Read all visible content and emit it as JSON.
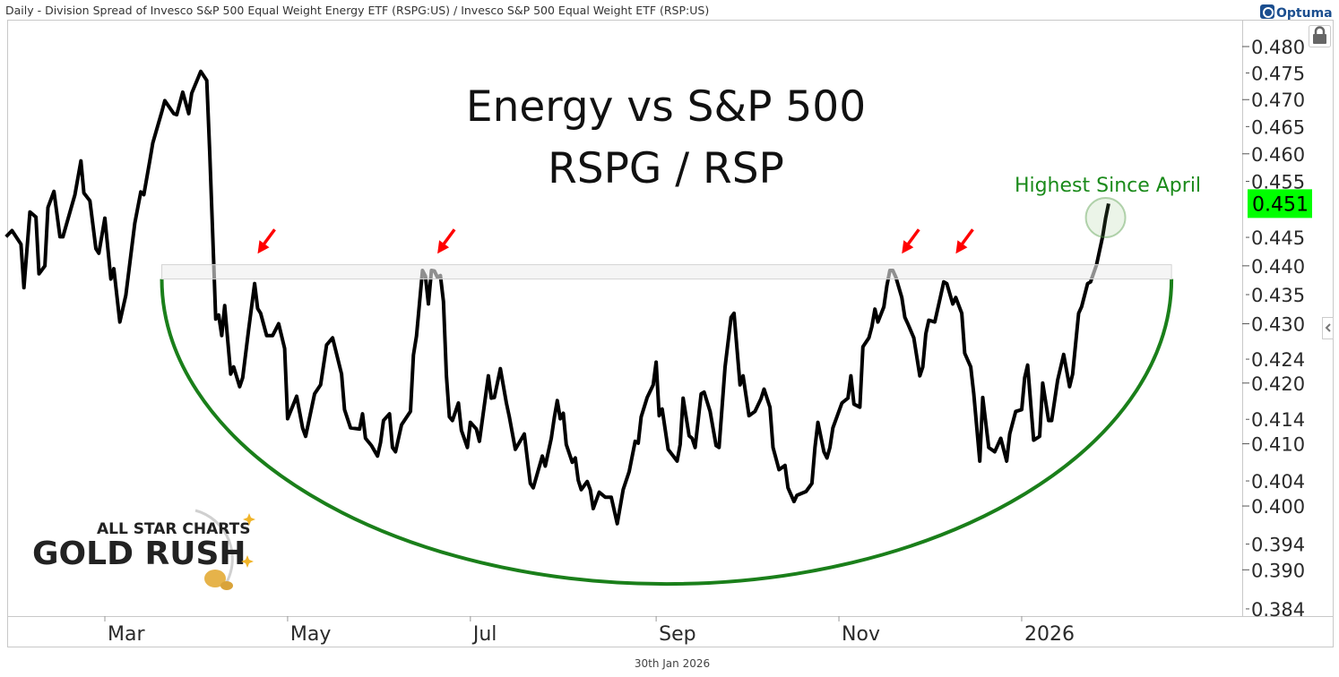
{
  "header": {
    "description": "Daily - Division Spread of Invesco S&P 500 Equal Weight Energy ETF (RSPG:US) / Invesco S&P 500 Equal Weight ETF (RSP:US)",
    "brand": "Optuma"
  },
  "footer": {
    "date": "30th Jan 2026"
  },
  "logo": {
    "line1": "ALL STAR CHARTS",
    "line2": "GOLD RUSH"
  },
  "colors": {
    "line": "#000000",
    "cup": "#1a7f1a",
    "arrow": "#ff0000",
    "last_value_bg": "#00ff00",
    "annotation": "#1a8a1a"
  },
  "chart_data": {
    "type": "line",
    "title": "Energy vs S&P 500",
    "subtitle": "RSPG / RSP",
    "x_unit": "days since 2025-01-01",
    "y_scale": "log",
    "ylim": [
      0.382,
      0.484
    ],
    "xlim": [
      24,
      420
    ],
    "x_ticks": [
      {
        "label": "Mar",
        "day": 59
      },
      {
        "label": "May",
        "day": 120
      },
      {
        "label": "Jul",
        "day": 181
      },
      {
        "label": "Sep",
        "day": 243
      },
      {
        "label": "Nov",
        "day": 304
      },
      {
        "label": "2026",
        "day": 365
      }
    ],
    "y_ticks": [
      "0.480",
      "0.475",
      "0.470",
      "0.465",
      "0.460",
      "0.455",
      "0.445",
      "0.440",
      "0.435",
      "0.430",
      "0.424",
      "0.420",
      "0.414",
      "0.410",
      "0.404",
      "0.400",
      "0.394",
      "0.390",
      "0.384"
    ],
    "last_value": "0.451",
    "annotation": {
      "text": "Highest Since April",
      "day": 393,
      "value": 0.4485
    },
    "resistance_band": {
      "from_day": 78,
      "to_day": 415,
      "low": 0.4377,
      "high": 0.4402
    },
    "cup": {
      "from_day": 78,
      "to_day": 415,
      "rim": 0.4377,
      "bottom": 0.3878
    },
    "arrows": [
      {
        "day": 110,
        "value": 0.4415
      },
      {
        "day": 170,
        "value": 0.4415
      },
      {
        "day": 325,
        "value": 0.4415
      },
      {
        "day": 343,
        "value": 0.4415
      }
    ],
    "series": [
      {
        "name": "RSPG / RSP",
        "points": [
          [
            26,
            0.4451
          ],
          [
            28,
            0.4462
          ],
          [
            31,
            0.4438
          ],
          [
            32,
            0.4362
          ],
          [
            34,
            0.4495
          ],
          [
            36,
            0.4486
          ],
          [
            37,
            0.4386
          ],
          [
            39,
            0.44
          ],
          [
            40,
            0.4503
          ],
          [
            42,
            0.4532
          ],
          [
            44,
            0.4451
          ],
          [
            45,
            0.4451
          ],
          [
            49,
            0.4526
          ],
          [
            51,
            0.4587
          ],
          [
            52,
            0.4529
          ],
          [
            54,
            0.4515
          ],
          [
            56,
            0.443
          ],
          [
            57,
            0.4422
          ],
          [
            59,
            0.4484
          ],
          [
            61,
            0.4377
          ],
          [
            62,
            0.4395
          ],
          [
            64,
            0.4303
          ],
          [
            66,
            0.4349
          ],
          [
            69,
            0.4475
          ],
          [
            71,
            0.4531
          ],
          [
            72,
            0.4526
          ],
          [
            74,
            0.4587
          ],
          [
            75,
            0.462
          ],
          [
            78,
            0.4677
          ],
          [
            79,
            0.4698
          ],
          [
            82,
            0.4674
          ],
          [
            83,
            0.4672
          ],
          [
            85,
            0.4714
          ],
          [
            87,
            0.4674
          ],
          [
            88,
            0.4712
          ],
          [
            90,
            0.4739
          ],
          [
            91,
            0.4753
          ],
          [
            93,
            0.4736
          ],
          [
            94,
            0.4603
          ],
          [
            95,
            0.4456
          ],
          [
            96,
            0.4308
          ],
          [
            97,
            0.4315
          ],
          [
            98,
            0.428
          ],
          [
            99,
            0.4331
          ],
          [
            101,
            0.4215
          ],
          [
            102,
            0.4227
          ],
          [
            104,
            0.4194
          ],
          [
            105,
            0.4209
          ],
          [
            107,
            0.4291
          ],
          [
            109,
            0.4369
          ],
          [
            110,
            0.4326
          ],
          [
            111,
            0.4318
          ],
          [
            113,
            0.428
          ],
          [
            115,
            0.428
          ],
          [
            117,
            0.43
          ],
          [
            119,
            0.4258
          ],
          [
            120,
            0.4141
          ],
          [
            123,
            0.4178
          ],
          [
            125,
            0.4126
          ],
          [
            126,
            0.4112
          ],
          [
            129,
            0.4182
          ],
          [
            131,
            0.4197
          ],
          [
            133,
            0.4264
          ],
          [
            135,
            0.4276
          ],
          [
            138,
            0.4215
          ],
          [
            139,
            0.4156
          ],
          [
            141,
            0.4126
          ],
          [
            144,
            0.4124
          ],
          [
            145,
            0.4149
          ],
          [
            146,
            0.4109
          ],
          [
            148,
            0.4097
          ],
          [
            150,
            0.408
          ],
          [
            151,
            0.4102
          ],
          [
            152,
            0.4138
          ],
          [
            154,
            0.4149
          ],
          [
            155,
            0.4094
          ],
          [
            156,
            0.4087
          ],
          [
            158,
            0.4131
          ],
          [
            161,
            0.4153
          ],
          [
            162,
            0.4247
          ],
          [
            163,
            0.4279
          ],
          [
            165,
            0.4392
          ],
          [
            166,
            0.4382
          ],
          [
            167,
            0.4334
          ],
          [
            168,
            0.4392
          ],
          [
            169,
            0.4391
          ],
          [
            170,
            0.438
          ],
          [
            171,
            0.4383
          ],
          [
            172,
            0.4338
          ],
          [
            173,
            0.4212
          ],
          [
            174,
            0.4144
          ],
          [
            175,
            0.4138
          ],
          [
            177,
            0.4167
          ],
          [
            178,
            0.4122
          ],
          [
            180,
            0.4094
          ],
          [
            181,
            0.4135
          ],
          [
            183,
            0.4124
          ],
          [
            184,
            0.4104
          ],
          [
            187,
            0.4212
          ],
          [
            188,
            0.4175
          ],
          [
            189,
            0.4176
          ],
          [
            191,
            0.4224
          ],
          [
            193,
            0.4167
          ],
          [
            194,
            0.4144
          ],
          [
            196,
            0.4091
          ],
          [
            199,
            0.4116
          ],
          [
            201,
            0.4036
          ],
          [
            202,
            0.4029
          ],
          [
            205,
            0.408
          ],
          [
            206,
            0.4064
          ],
          [
            208,
            0.4109
          ],
          [
            209,
            0.4143
          ],
          [
            210,
            0.4171
          ],
          [
            211,
            0.4141
          ],
          [
            212,
            0.415
          ],
          [
            213,
            0.4099
          ],
          [
            215,
            0.407
          ],
          [
            216,
            0.4077
          ],
          [
            217,
            0.4041
          ],
          [
            218,
            0.4026
          ],
          [
            220,
            0.4039
          ],
          [
            221,
            0.4026
          ],
          [
            222,
            0.3996
          ],
          [
            224,
            0.4022
          ],
          [
            226,
            0.4014
          ],
          [
            228,
            0.4014
          ],
          [
            230,
            0.3972
          ],
          [
            232,
            0.4026
          ],
          [
            234,
            0.4055
          ],
          [
            236,
            0.4104
          ],
          [
            237,
            0.4101
          ],
          [
            238,
            0.4144
          ],
          [
            240,
            0.4176
          ],
          [
            242,
            0.4197
          ],
          [
            243,
            0.4235
          ],
          [
            244,
            0.4146
          ],
          [
            245,
            0.4157
          ],
          [
            247,
            0.4091
          ],
          [
            250,
            0.4072
          ],
          [
            251,
            0.4099
          ],
          [
            252,
            0.4175
          ],
          [
            254,
            0.4113
          ],
          [
            255,
            0.4109
          ],
          [
            256,
            0.4094
          ],
          [
            258,
            0.4182
          ],
          [
            259,
            0.4185
          ],
          [
            261,
            0.4153
          ],
          [
            263,
            0.4097
          ],
          [
            264,
            0.4094
          ],
          [
            266,
            0.4227
          ],
          [
            268,
            0.4311
          ],
          [
            269,
            0.4318
          ],
          [
            271,
            0.4197
          ],
          [
            272,
            0.4212
          ],
          [
            274,
            0.4146
          ],
          [
            276,
            0.4153
          ],
          [
            278,
            0.4174
          ],
          [
            279,
            0.419
          ],
          [
            281,
            0.416
          ],
          [
            282,
            0.4094
          ],
          [
            284,
            0.4058
          ],
          [
            286,
            0.4065
          ],
          [
            287,
            0.4029
          ],
          [
            289,
            0.4007
          ],
          [
            290,
            0.4017
          ],
          [
            293,
            0.4023
          ],
          [
            295,
            0.4036
          ],
          [
            296,
            0.4094
          ],
          [
            297,
            0.4135
          ],
          [
            299,
            0.4087
          ],
          [
            300,
            0.4077
          ],
          [
            301,
            0.4094
          ],
          [
            302,
            0.4126
          ],
          [
            305,
            0.4167
          ],
          [
            307,
            0.4175
          ],
          [
            308,
            0.4212
          ],
          [
            309,
            0.4165
          ],
          [
            311,
            0.416
          ],
          [
            312,
            0.4261
          ],
          [
            314,
            0.4276
          ],
          [
            315,
            0.4295
          ],
          [
            316,
            0.4325
          ],
          [
            317,
            0.4303
          ],
          [
            319,
            0.4329
          ],
          [
            320,
            0.4365
          ],
          [
            321,
            0.4392
          ],
          [
            322,
            0.4392
          ],
          [
            323,
            0.438
          ],
          [
            325,
            0.4345
          ],
          [
            326,
            0.4311
          ],
          [
            327,
            0.43
          ],
          [
            329,
            0.4276
          ],
          [
            331,
            0.4212
          ],
          [
            332,
            0.4227
          ],
          [
            333,
            0.4283
          ],
          [
            334,
            0.4306
          ],
          [
            336,
            0.4303
          ],
          [
            338,
            0.4349
          ],
          [
            339,
            0.4372
          ],
          [
            340,
            0.4369
          ],
          [
            342,
            0.4334
          ],
          [
            343,
            0.4345
          ],
          [
            345,
            0.4318
          ],
          [
            346,
            0.425
          ],
          [
            348,
            0.4227
          ],
          [
            349,
            0.4182
          ],
          [
            351,
            0.4072
          ],
          [
            352,
            0.4176
          ],
          [
            354,
            0.4094
          ],
          [
            356,
            0.4087
          ],
          [
            358,
            0.4109
          ],
          [
            360,
            0.4072
          ],
          [
            361,
            0.4116
          ],
          [
            363,
            0.4153
          ],
          [
            365,
            0.4156
          ],
          [
            366,
            0.4209
          ],
          [
            367,
            0.423
          ],
          [
            369,
            0.4106
          ],
          [
            371,
            0.4112
          ],
          [
            372,
            0.42
          ],
          [
            374,
            0.4138
          ],
          [
            375,
            0.4138
          ],
          [
            377,
            0.4205
          ],
          [
            379,
            0.4248
          ],
          [
            381,
            0.4194
          ],
          [
            382,
            0.4215
          ],
          [
            384,
            0.4318
          ],
          [
            385,
            0.4329
          ],
          [
            387,
            0.4369
          ],
          [
            388,
            0.4372
          ],
          [
            390,
            0.4402
          ],
          [
            392,
            0.4451
          ],
          [
            393,
            0.4484
          ],
          [
            394,
            0.451
          ]
        ]
      }
    ]
  }
}
